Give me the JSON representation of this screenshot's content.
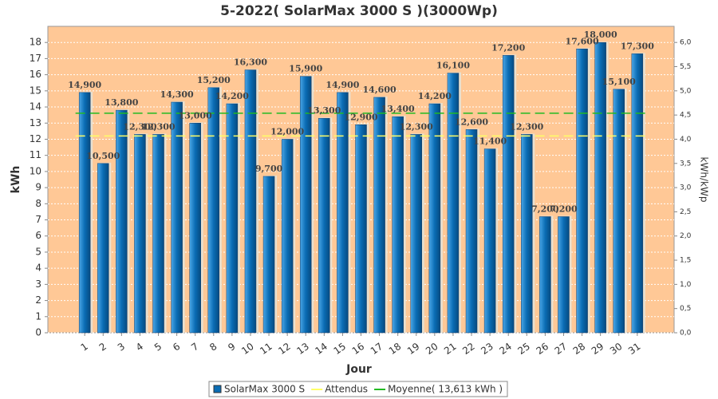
{
  "chart_data": {
    "type": "bar",
    "title": "5-2022( SolarMax 3000 S )(3000Wp)",
    "x_label": "Jour",
    "y_label": "kWh",
    "y2_label": "kWh/kWp",
    "categories": [
      "1",
      "2",
      "3",
      "4",
      "5",
      "6",
      "7",
      "8",
      "9",
      "10",
      "11",
      "12",
      "13",
      "14",
      "15",
      "16",
      "17",
      "18",
      "19",
      "20",
      "21",
      "22",
      "23",
      "24",
      "25",
      "26",
      "27",
      "28",
      "29",
      "30",
      "31"
    ],
    "series": [
      {
        "name": "SolarMax 3000 S",
        "color": "#0a6cb4",
        "values": [
          14.9,
          10.5,
          13.8,
          12.3,
          12.3,
          14.3,
          13.0,
          15.2,
          14.2,
          16.3,
          9.7,
          12.0,
          15.9,
          13.3,
          14.9,
          12.9,
          14.6,
          13.4,
          12.3,
          14.2,
          16.1,
          12.6,
          11.4,
          17.2,
          12.3,
          7.2,
          7.2,
          17.6,
          18.0,
          15.1,
          17.3
        ],
        "value_labels": [
          "14,900",
          "10,500",
          "13,800",
          "12,300",
          "12,300",
          "14,300",
          "13,000",
          "15,200",
          "14,200",
          "16,300",
          "9,700",
          "12,000",
          "15,900",
          "13,300",
          "14,900",
          "12,900",
          "14,600",
          "13,400",
          "12,300",
          "14,200",
          "16,100",
          "12,600",
          "11,400",
          "17,200",
          "12,300",
          "7,200",
          "7,200",
          "17,600",
          "18,000",
          "15,100",
          "17,300"
        ]
      }
    ],
    "reference_lines": [
      {
        "name": "Attendus",
        "color": "#ffff66",
        "value": 12.2
      },
      {
        "name": "Moyenne( 13,613 kWh )",
        "color": "#22bb22",
        "value": 13.613
      }
    ],
    "ylim": [
      0,
      19
    ],
    "yticks": [
      0,
      1,
      2,
      3,
      4,
      5,
      6,
      7,
      8,
      9,
      10,
      11,
      12,
      13,
      14,
      15,
      16,
      17,
      18
    ],
    "y2lim": [
      0,
      6.333
    ],
    "y2ticks": [
      {
        "value": 0,
        "label": "0,0"
      },
      {
        "value": 0.5,
        "label": "0,5"
      },
      {
        "value": 1,
        "label": "1,0"
      },
      {
        "value": 1.5,
        "label": "1,5"
      },
      {
        "value": 2,
        "label": "2,0"
      },
      {
        "value": 2.5,
        "label": "2,5"
      },
      {
        "value": 3,
        "label": "3,0"
      },
      {
        "value": 3.5,
        "label": "3,5"
      },
      {
        "value": 4,
        "label": "4,0"
      },
      {
        "value": 4.5,
        "label": "4,5"
      },
      {
        "value": 5,
        "label": "5,0"
      },
      {
        "value": 5.5,
        "label": "5,5"
      },
      {
        "value": 6,
        "label": "6,0"
      }
    ],
    "grid": true
  }
}
